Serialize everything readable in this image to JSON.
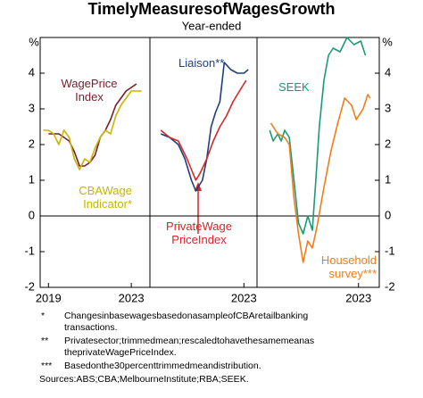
{
  "title": "TimelyMeasuresofWagesGrowth",
  "subtitle": "Year-ended",
  "y_unit": "%",
  "chart_data": [
    {
      "type": "line",
      "xlim": [
        2018.6,
        2023.9
      ],
      "xticks": [
        2019,
        2023
      ],
      "ylim": [
        -2,
        5
      ],
      "yticks": [
        -2,
        -1,
        0,
        1,
        2,
        3,
        4
      ],
      "series": [
        {
          "name": "WagePrice Index",
          "color": "#7a1d2c",
          "x": [
            2019,
            2019.25,
            2019.5,
            2019.75,
            2020,
            2020.25,
            2020.5,
            2020.75,
            2021,
            2021.25,
            2021.5,
            2021.75,
            2022,
            2022.25,
            2022.5,
            2022.75,
            2023,
            2023.25
          ],
          "values": [
            2.3,
            2.3,
            2.3,
            2.2,
            2.1,
            1.8,
            1.4,
            1.4,
            1.5,
            1.7,
            2.2,
            2.4,
            2.7,
            3.1,
            3.3,
            3.5,
            3.6,
            3.7
          ]
        },
        {
          "name": "CBAWage Indicator*",
          "color": "#c9b400",
          "x": [
            2018.75,
            2019,
            2019.25,
            2019.5,
            2019.75,
            2020,
            2020.25,
            2020.5,
            2020.75,
            2021,
            2021.25,
            2021.5,
            2021.75,
            2022,
            2022.25,
            2022.5,
            2022.75,
            2023,
            2023.25,
            2023.5
          ],
          "values": [
            2.4,
            2.4,
            2.3,
            2.0,
            2.4,
            2.2,
            1.6,
            1.3,
            1.6,
            1.5,
            1.9,
            2.2,
            2.4,
            2.3,
            2.8,
            3.1,
            3.3,
            3.5,
            3.5,
            3.5
          ]
        }
      ]
    },
    {
      "type": "line",
      "xlim": [
        2018.7,
        2023.6
      ],
      "xticks": [
        2023
      ],
      "ylim": [
        -2,
        5
      ],
      "yticks": [
        -2,
        -1,
        0,
        1,
        2,
        3,
        4
      ],
      "series": [
        {
          "name": "Liaison**",
          "color": "#1f3f7a",
          "x": [
            2019.2,
            2019.6,
            2020.0,
            2020.3,
            2020.6,
            2020.8,
            2021.1,
            2021.3,
            2021.5,
            2021.7,
            2021.9,
            2022.1,
            2022.4,
            2022.7,
            2023.0,
            2023.2
          ],
          "values": [
            2.3,
            2.2,
            2.0,
            1.6,
            1.0,
            0.7,
            1.0,
            1.6,
            2.5,
            2.9,
            3.2,
            4.3,
            4.1,
            4.0,
            4.0,
            4.1
          ]
        },
        {
          "name": "PrivateWage PriceIndex",
          "color": "#d62728",
          "x": [
            2019.2,
            2019.6,
            2020.0,
            2020.4,
            2020.8,
            2021.0,
            2021.3,
            2021.6,
            2021.9,
            2022.2,
            2022.5,
            2022.8,
            2023.1
          ],
          "values": [
            2.4,
            2.2,
            2.1,
            1.6,
            1.0,
            1.2,
            1.6,
            2.1,
            2.5,
            2.8,
            3.2,
            3.5,
            3.8
          ]
        }
      ]
    },
    {
      "type": "line",
      "xlim": [
        2018.6,
        2023.9
      ],
      "xticks": [
        2023
      ],
      "ylim": [
        -2,
        5
      ],
      "yticks": [
        -2,
        -1,
        0,
        1,
        2,
        3,
        4
      ],
      "series": [
        {
          "name": "SEEK",
          "color": "#1a9a78",
          "x": [
            2019.15,
            2019.3,
            2019.5,
            2019.65,
            2019.8,
            2020.0,
            2020.2,
            2020.4,
            2020.6,
            2020.8,
            2021.0,
            2021.15,
            2021.3,
            2021.5,
            2021.7,
            2021.9,
            2022.2,
            2022.5,
            2022.8,
            2023.1,
            2023.3
          ],
          "values": [
            2.4,
            2.1,
            2.3,
            2.1,
            2.4,
            2.2,
            1.0,
            -0.2,
            -0.5,
            0.0,
            -0.4,
            1.0,
            2.5,
            3.8,
            4.5,
            4.7,
            4.6,
            5.0,
            4.8,
            4.9,
            4.5
          ]
        },
        {
          "name": "Household survey***",
          "color": "#f07d1a",
          "x": [
            2019.2,
            2019.5,
            2019.8,
            2020.0,
            2020.2,
            2020.4,
            2020.6,
            2020.8,
            2021.0,
            2021.2,
            2021.5,
            2021.8,
            2022.1,
            2022.4,
            2022.7,
            2022.9,
            2023.2,
            2023.4,
            2023.5
          ],
          "values": [
            2.6,
            2.3,
            2.2,
            2.0,
            0.5,
            -0.5,
            -1.3,
            -0.7,
            -0.9,
            -0.3,
            0.8,
            1.8,
            2.6,
            3.3,
            3.1,
            2.7,
            3.0,
            3.4,
            3.3
          ]
        }
      ]
    }
  ],
  "notes": [
    {
      "marker": "*",
      "text": "ChangesinbasewagesbasedonasampleofCBAretailbanking transactions."
    },
    {
      "marker": "**",
      "text": "Privatesector;trimmedmean;rescaledtohavethesamemeanas theprivateWagePriceIndex."
    },
    {
      "marker": "***",
      "text": "Basedonthe30percenttrimmedmeandistribution."
    }
  ],
  "sources": "Sources:ABS;CBA;MelbourneInstitute;RBA;SEEK."
}
